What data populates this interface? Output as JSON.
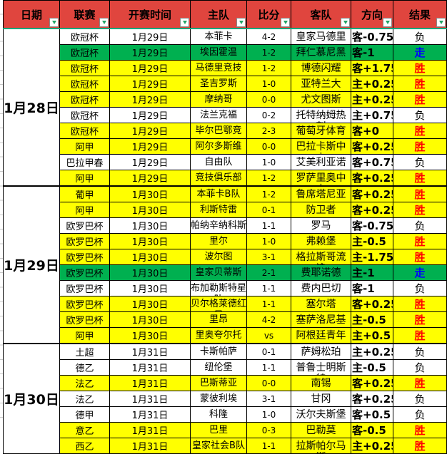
{
  "table": {
    "columns": [
      "日期",
      "联赛",
      "开赛时间",
      "主队",
      "比分",
      "客队",
      "方向",
      "结果"
    ],
    "groups": [
      {
        "date": "1月28日",
        "rows": [
          {
            "league": "欧冠杯",
            "time": "1月29日",
            "home": "本菲卡",
            "score": "4-2",
            "away": "皇家马德里",
            "direction": "客-0.75",
            "result": "负",
            "bg": "white"
          },
          {
            "league": "欧冠杯",
            "time": "1月29日",
            "home": "埃因霍温",
            "score": "1-2",
            "away": "拜仁慕尼黑",
            "direction": "客-1",
            "result": "走",
            "bg": "green"
          },
          {
            "league": "欧冠杯",
            "time": "1月29日",
            "home": "马德里竞技",
            "score": "1-2",
            "away": "博德闪耀",
            "direction": "客+1.75",
            "result": "胜",
            "bg": "yellow"
          },
          {
            "league": "欧冠杯",
            "time": "1月29日",
            "home": "圣吉罗斯",
            "score": "1-0",
            "away": "亚特兰大",
            "direction": "主+0.25",
            "result": "胜",
            "bg": "yellow"
          },
          {
            "league": "欧冠杯",
            "time": "1月29日",
            "home": "摩纳哥",
            "score": "0-0",
            "away": "尤文图斯",
            "direction": "主+0.25",
            "result": "胜",
            "bg": "yellow"
          },
          {
            "league": "欧冠杯",
            "time": "1月29日",
            "home": "法兰克福",
            "score": "0-2",
            "away": "托特纳姆热刺",
            "direction": "主+0.75",
            "result": "负",
            "bg": "white"
          },
          {
            "league": "欧冠杯",
            "time": "1月29日",
            "home": "毕尔巴鄂竞",
            "score": "2-3",
            "away": "葡萄牙体育",
            "direction": "客+0",
            "result": "胜",
            "bg": "yellow"
          },
          {
            "league": "阿甲",
            "time": "1月29日",
            "home": "阿尔多斯维",
            "score": "0-0",
            "away": "巴拉卡斯中央",
            "direction": "客+0.25",
            "result": "胜",
            "bg": "yellow"
          },
          {
            "league": "巴拉甲春",
            "time": "1月29日",
            "home": "自由队",
            "score": "1-0",
            "away": "艾美利亚诺",
            "direction": "客+0.75",
            "result": "负",
            "bg": "white"
          },
          {
            "league": "阿甲",
            "time": "1月29日",
            "home": "竞技俱乐部",
            "score": "1-2",
            "away": "罗萨里奥中央",
            "direction": "客+0.25",
            "result": "胜",
            "bg": "yellow"
          }
        ]
      },
      {
        "date": "1月29日",
        "rows": [
          {
            "league": "葡甲",
            "time": "1月30日",
            "home": "本菲卡B队",
            "score": "1-2",
            "away": "鲁席塔尼亚",
            "direction": "客+0.25",
            "result": "胜",
            "bg": "yellow"
          },
          {
            "league": "阿甲",
            "time": "1月30日",
            "home": "利斯特雷",
            "score": "0-1",
            "away": "防卫者",
            "direction": "客+0.25",
            "result": "胜",
            "bg": "yellow"
          },
          {
            "league": "欧罗巴杯",
            "time": "1月30日",
            "home": "帕纳辛纳科斯",
            "score": "1-1",
            "away": "罗马",
            "direction": "客-0.75",
            "result": "负",
            "bg": "white"
          },
          {
            "league": "欧罗巴杯",
            "time": "1月30日",
            "home": "里尔",
            "score": "1-0",
            "away": "弗赖堡",
            "direction": "主-0.5",
            "result": "胜",
            "bg": "yellow"
          },
          {
            "league": "欧罗巴杯",
            "time": "1月30日",
            "home": "波尔图",
            "score": "3-1",
            "away": "格拉斯哥流浪",
            "direction": "主-1.75",
            "result": "胜",
            "bg": "yellow"
          },
          {
            "league": "欧罗巴杯",
            "time": "1月30日",
            "home": "皇家贝蒂斯",
            "score": "2-1",
            "away": "费耶诺德",
            "direction": "主-1",
            "result": "走",
            "bg": "green"
          },
          {
            "league": "欧罗巴杯",
            "time": "1月30日",
            "home": "布加勒斯特星队",
            "score": "1-1",
            "away": "费内巴切",
            "direction": "客-1",
            "result": "负",
            "bg": "white"
          },
          {
            "league": "欧罗巴杯",
            "time": "1月30日",
            "home": "贝尔格莱德红星",
            "score": "1-1",
            "away": "塞尔塔",
            "direction": "客+0.25",
            "result": "胜",
            "bg": "yellow"
          },
          {
            "league": "欧罗巴杯",
            "time": "1月30日",
            "home": "里昂",
            "score": "4-2",
            "away": "塞萨洛尼基",
            "direction": "主-0.5",
            "result": "胜",
            "bg": "yellow"
          },
          {
            "league": "阿甲",
            "time": "1月30日",
            "home": "里奥夸尔托",
            "score": "vs",
            "away": "阿根廷青年",
            "direction": "主+0.5",
            "result": "胜",
            "bg": "yellow"
          }
        ]
      },
      {
        "date": "1月30日",
        "rows": [
          {
            "league": "土超",
            "time": "1月31日",
            "home": "卡斯帕萨",
            "score": "0-1",
            "away": "萨姆松珀",
            "direction": "主+0.25",
            "result": "负",
            "bg": "white"
          },
          {
            "league": "德乙",
            "time": "1月31日",
            "home": "纽伦堡",
            "score": "1-1",
            "away": "普鲁士明斯特",
            "direction": "主-0.5",
            "result": "负",
            "bg": "white"
          },
          {
            "league": "法乙",
            "time": "1月31日",
            "home": "巴斯蒂亚",
            "score": "0-0",
            "away": "南锡",
            "direction": "客+0.25",
            "result": "胜",
            "bg": "yellow"
          },
          {
            "league": "法乙",
            "time": "1月31日",
            "home": "蒙彼利埃",
            "score": "3-1",
            "away": "甘冈",
            "direction": "客+0.25",
            "result": "负",
            "bg": "white"
          },
          {
            "league": "德甲",
            "time": "1月31日",
            "home": "科隆",
            "score": "1-0",
            "away": "沃尔夫斯堡",
            "direction": "客+0.5",
            "result": "负",
            "bg": "white"
          },
          {
            "league": "意乙",
            "time": "1月31日",
            "home": "巴里",
            "score": "0-3",
            "away": "巴勒莫",
            "direction": "客-0.5",
            "result": "胜",
            "bg": "yellow"
          },
          {
            "league": "西乙",
            "time": "1月31日",
            "home": "皇家社会B队",
            "score": "1-1",
            "away": "拉斯帕尔马斯",
            "direction": "主+0.25",
            "result": "胜",
            "bg": "yellow"
          }
        ]
      }
    ]
  },
  "result_styles": {
    "胜": {
      "color": "#FF0000",
      "bold": true
    },
    "走": {
      "color": "#0000FF",
      "bold": true
    },
    "负": {
      "color": "#000000",
      "bold": false
    }
  },
  "colors": {
    "header_bg": "#E0453E",
    "row_yellow": "#FFFF00",
    "row_green": "#00B050",
    "accent_line": "#17A57B",
    "arrow_green": "#21A366",
    "win_red": "#FF0000",
    "run_blue": "#0000FF"
  },
  "icons": {
    "filter_arrow": "dropdown-triangle"
  }
}
